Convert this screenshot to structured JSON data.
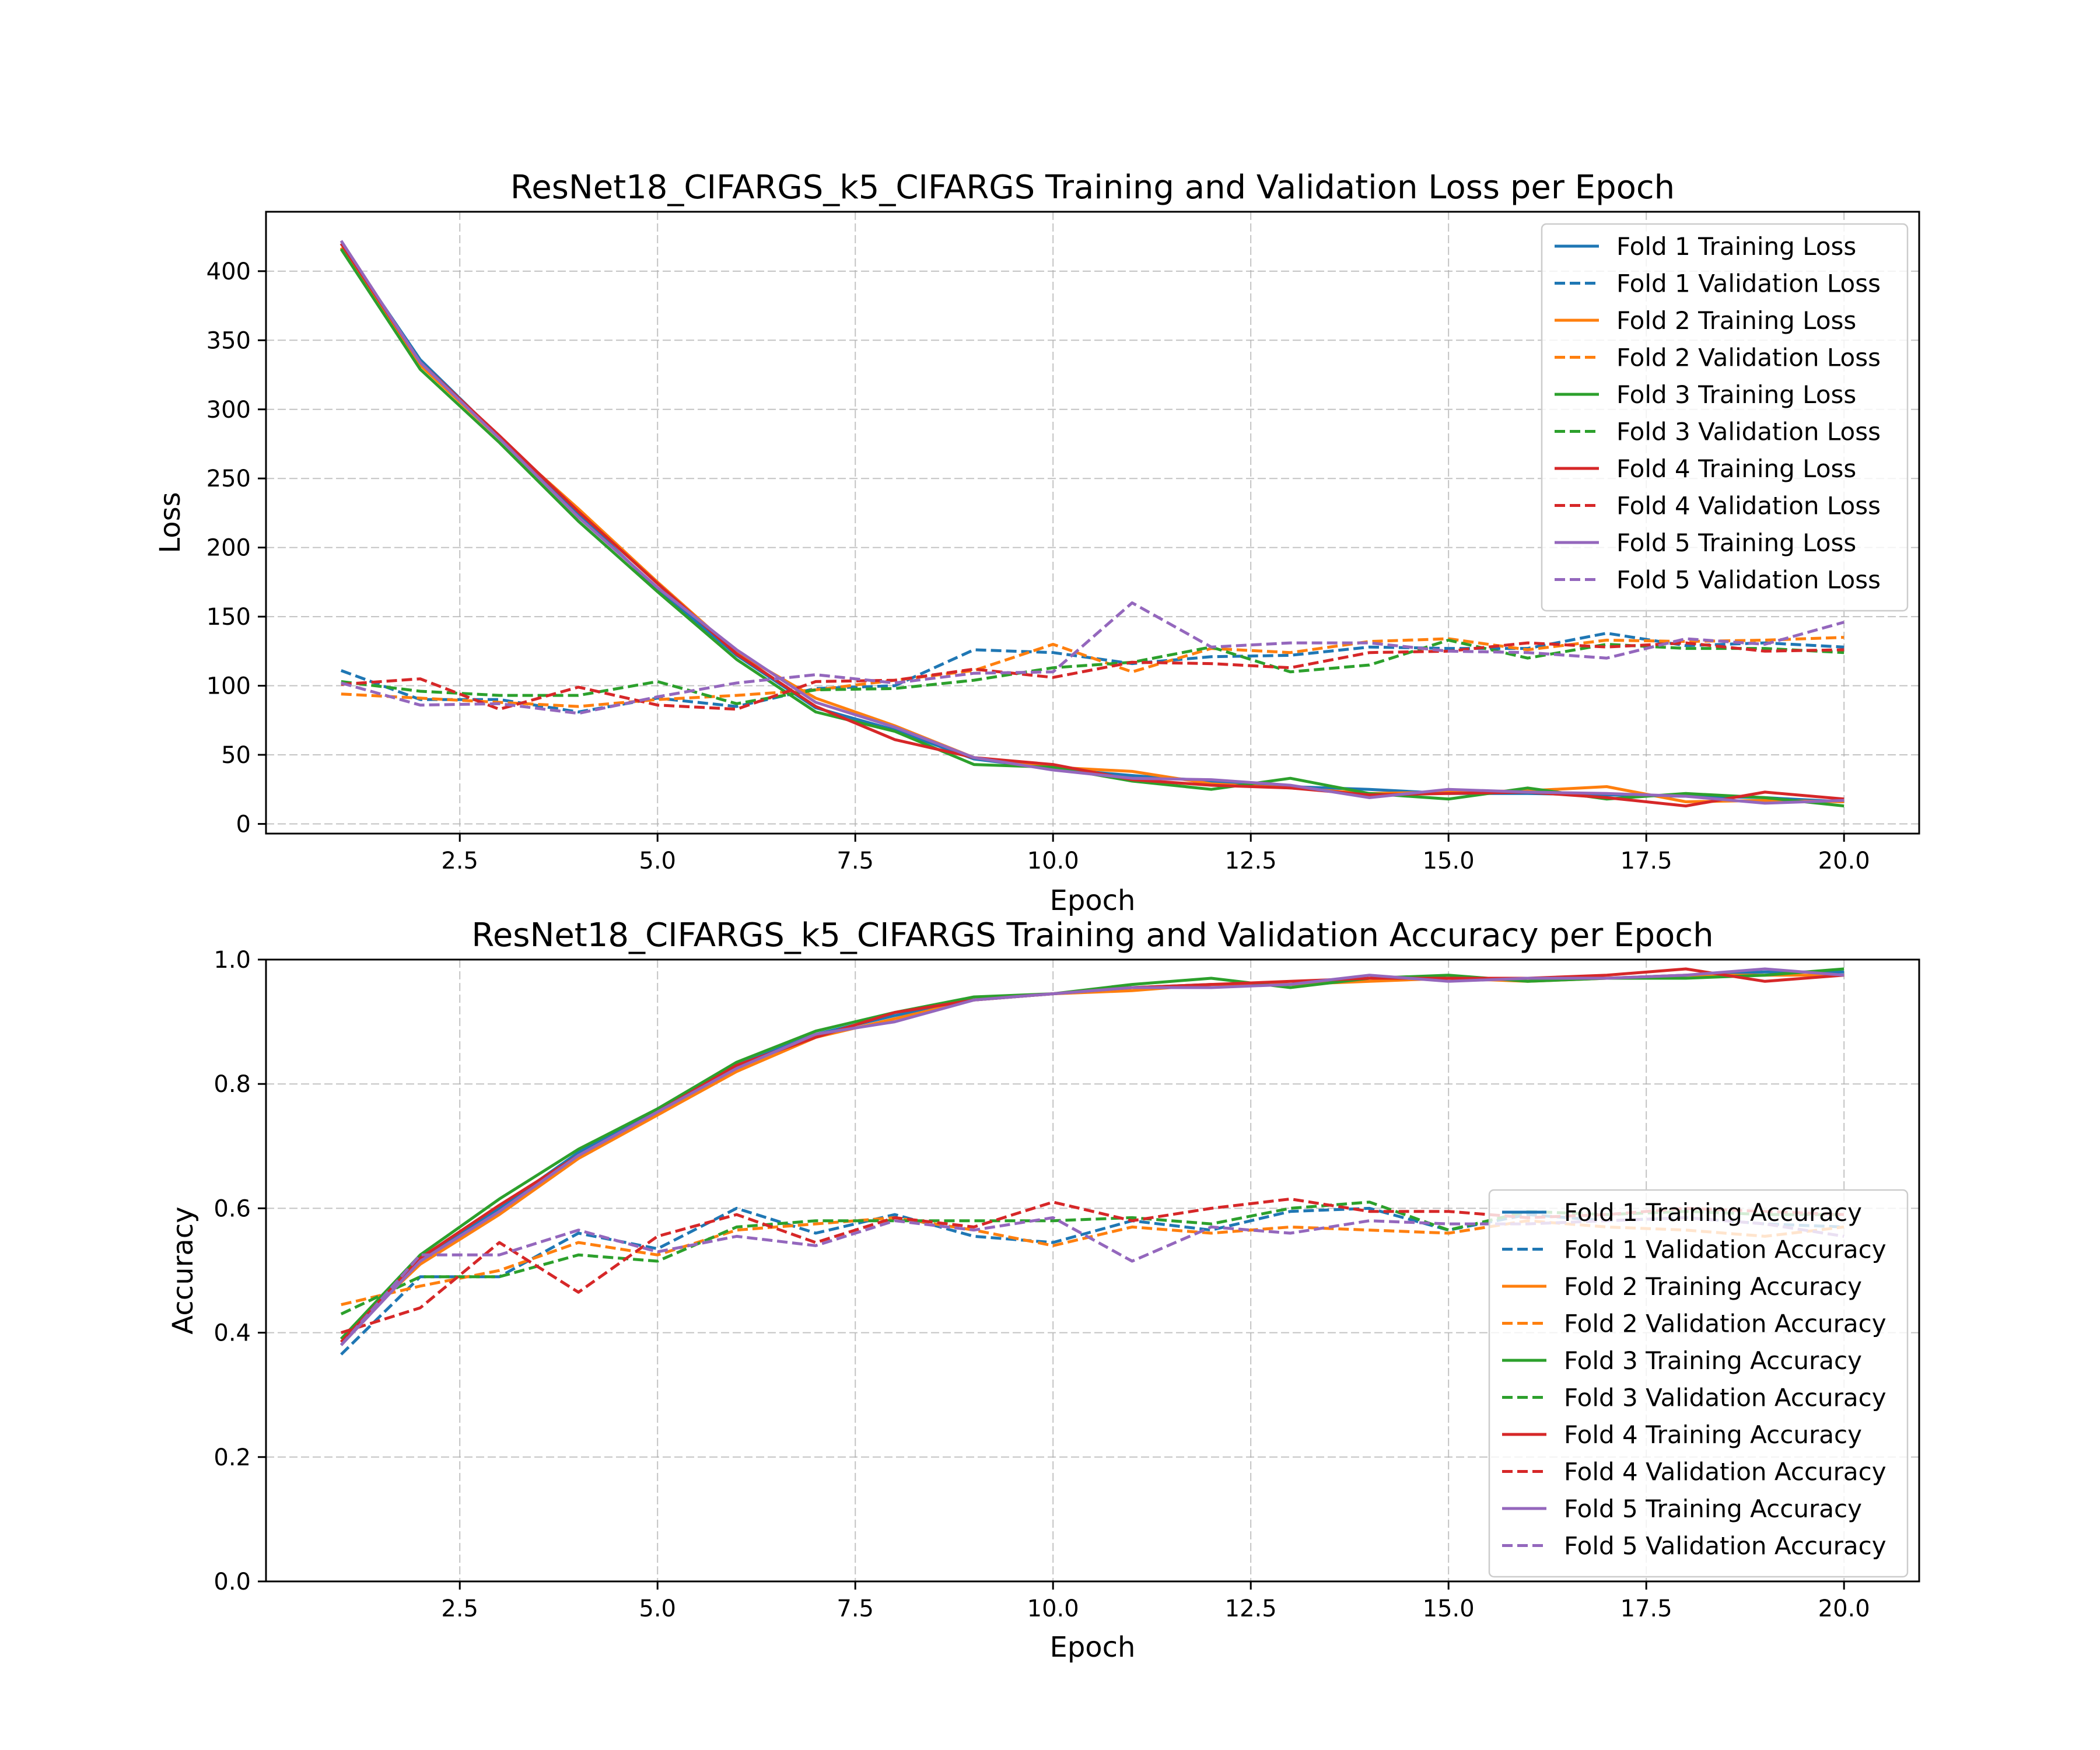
{
  "chart_data": [
    {
      "type": "line",
      "title": "ResNet18_CIFARGS_k5_CIFARGS Training and Validation Loss per Epoch",
      "xlabel": "Epoch",
      "ylabel": "Loss",
      "xlim": [
        0.05,
        20.95
      ],
      "ylim": [
        -7,
        443
      ],
      "x_ticks": [
        2.5,
        5.0,
        7.5,
        10.0,
        12.5,
        15.0,
        17.5,
        20.0
      ],
      "x_tick_labels": [
        "2.5",
        "5.0",
        "7.5",
        "10.0",
        "12.5",
        "15.0",
        "17.5",
        "20.0"
      ],
      "y_ticks": [
        0,
        50,
        100,
        150,
        200,
        250,
        300,
        350,
        400
      ],
      "y_tick_labels": [
        "0",
        "50",
        "100",
        "150",
        "200",
        "250",
        "300",
        "350",
        "400"
      ],
      "grid": true,
      "legend_position": "upper right",
      "x": [
        1,
        2,
        3,
        4,
        5,
        6,
        7,
        8,
        9,
        10,
        11,
        12,
        13,
        14,
        15,
        16,
        17,
        18,
        19,
        20
      ],
      "series": [
        {
          "name": "Fold 1 Training Loss",
          "color": "#1f77b4",
          "dash": "solid",
          "values": [
            420,
            336,
            280,
            224,
            170,
            122,
            84,
            68,
            47,
            40,
            35,
            31,
            27,
            25,
            22,
            22,
            21,
            20,
            19,
            16
          ]
        },
        {
          "name": "Fold 1 Validation Loss",
          "color": "#1f77b4",
          "dash": "dashed",
          "values": [
            111,
            90,
            90,
            81,
            91,
            85,
            98,
            100,
            126,
            124,
            116,
            121,
            122,
            128,
            127,
            127,
            138,
            129,
            131,
            128
          ]
        },
        {
          "name": "Fold 2 Training Loss",
          "color": "#ff7f0e",
          "dash": "solid",
          "values": [
            417,
            332,
            279,
            228,
            175,
            124,
            91,
            71,
            48,
            41,
            38,
            29,
            26,
            22,
            23,
            24,
            27,
            16,
            17,
            16
          ]
        },
        {
          "name": "Fold 2 Validation Loss",
          "color": "#ff7f0e",
          "dash": "dashed",
          "values": [
            94,
            91,
            88,
            85,
            90,
            93,
            97,
            104,
            111,
            130,
            110,
            127,
            124,
            132,
            134,
            126,
            133,
            132,
            133,
            135
          ]
        },
        {
          "name": "Fold 3 Training Loss",
          "color": "#2ca02c",
          "dash": "solid",
          "values": [
            416,
            329,
            276,
            219,
            168,
            119,
            81,
            67,
            43,
            41,
            31,
            25,
            33,
            22,
            18,
            26,
            18,
            22,
            19,
            13
          ]
        },
        {
          "name": "Fold 3 Validation Loss",
          "color": "#2ca02c",
          "dash": "dashed",
          "values": [
            103,
            96,
            93,
            93,
            103,
            87,
            97,
            98,
            104,
            113,
            117,
            128,
            110,
            115,
            133,
            120,
            130,
            127,
            127,
            124
          ]
        },
        {
          "name": "Fold 4 Training Loss",
          "color": "#d62728",
          "dash": "solid",
          "values": [
            420,
            334,
            281,
            226,
            174,
            123,
            85,
            61,
            48,
            43,
            32,
            28,
            26,
            21,
            22,
            23,
            19,
            13,
            23,
            18
          ]
        },
        {
          "name": "Fold 4 Validation Loss",
          "color": "#d62728",
          "dash": "dashed",
          "values": [
            101,
            105,
            83,
            99,
            86,
            83,
            103,
            104,
            112,
            106,
            117,
            116,
            113,
            124,
            125,
            131,
            128,
            131,
            125,
            126
          ]
        },
        {
          "name": "Fold 5 Training Loss",
          "color": "#9467bd",
          "dash": "solid",
          "values": [
            422,
            334,
            279,
            222,
            171,
            126,
            88,
            70,
            48,
            39,
            33,
            32,
            28,
            19,
            25,
            23,
            22,
            20,
            15,
            17
          ]
        },
        {
          "name": "Fold 5 Validation Loss",
          "color": "#9467bd",
          "dash": "dashed",
          "values": [
            102,
            86,
            87,
            80,
            92,
            102,
            108,
            102,
            109,
            110,
            160,
            128,
            131,
            131,
            125,
            124,
            120,
            134,
            130,
            146
          ]
        }
      ]
    },
    {
      "type": "line",
      "title": "ResNet18_CIFARGS_k5_CIFARGS Training and Validation Accuracy per Epoch",
      "xlabel": "Epoch",
      "ylabel": "Accuracy",
      "xlim": [
        0.05,
        20.95
      ],
      "ylim": [
        0.0,
        1.0
      ],
      "x_ticks": [
        2.5,
        5.0,
        7.5,
        10.0,
        12.5,
        15.0,
        17.5,
        20.0
      ],
      "x_tick_labels": [
        "2.5",
        "5.0",
        "7.5",
        "10.0",
        "12.5",
        "15.0",
        "17.5",
        "20.0"
      ],
      "y_ticks": [
        0.0,
        0.2,
        0.4,
        0.6,
        0.8,
        1.0
      ],
      "y_tick_labels": [
        "0.0",
        "0.2",
        "0.4",
        "0.6",
        "0.8",
        "1.0"
      ],
      "grid": true,
      "legend_position": "lower right",
      "x": [
        1,
        2,
        3,
        4,
        5,
        6,
        7,
        8,
        9,
        10,
        11,
        12,
        13,
        14,
        15,
        16,
        17,
        18,
        19,
        20
      ],
      "series": [
        {
          "name": "Fold 1 Training Accuracy",
          "color": "#1f77b4",
          "dash": "solid",
          "values": [
            0.38,
            0.52,
            0.6,
            0.69,
            0.76,
            0.83,
            0.88,
            0.91,
            0.935,
            0.945,
            0.955,
            0.96,
            0.96,
            0.97,
            0.97,
            0.97,
            0.97,
            0.975,
            0.98,
            0.98
          ]
        },
        {
          "name": "Fold 1 Validation Accuracy",
          "color": "#1f77b4",
          "dash": "dashed",
          "values": [
            0.365,
            0.49,
            0.49,
            0.56,
            0.535,
            0.6,
            0.56,
            0.59,
            0.555,
            0.545,
            0.58,
            0.565,
            0.595,
            0.6,
            0.565,
            0.59,
            0.58,
            0.585,
            0.575,
            0.57
          ]
        },
        {
          "name": "Fold 2 Training Accuracy",
          "color": "#ff7f0e",
          "dash": "solid",
          "values": [
            0.39,
            0.51,
            0.59,
            0.68,
            0.75,
            0.82,
            0.875,
            0.905,
            0.935,
            0.945,
            0.95,
            0.96,
            0.96,
            0.965,
            0.97,
            0.965,
            0.97,
            0.975,
            0.975,
            0.975
          ]
        },
        {
          "name": "Fold 2 Validation Accuracy",
          "color": "#ff7f0e",
          "dash": "dashed",
          "values": [
            0.445,
            0.475,
            0.5,
            0.545,
            0.525,
            0.565,
            0.575,
            0.585,
            0.565,
            0.54,
            0.57,
            0.56,
            0.57,
            0.565,
            0.56,
            0.58,
            0.57,
            0.565,
            0.555,
            0.57
          ]
        },
        {
          "name": "Fold 3 Training Accuracy",
          "color": "#2ca02c",
          "dash": "solid",
          "values": [
            0.39,
            0.525,
            0.615,
            0.695,
            0.76,
            0.835,
            0.885,
            0.915,
            0.94,
            0.945,
            0.96,
            0.97,
            0.955,
            0.97,
            0.975,
            0.965,
            0.97,
            0.97,
            0.975,
            0.985
          ]
        },
        {
          "name": "Fold 3 Validation Accuracy",
          "color": "#2ca02c",
          "dash": "dashed",
          "values": [
            0.43,
            0.49,
            0.49,
            0.525,
            0.515,
            0.57,
            0.58,
            0.58,
            0.58,
            0.58,
            0.585,
            0.575,
            0.6,
            0.61,
            0.565,
            0.595,
            0.59,
            0.595,
            0.59,
            0.59
          ]
        },
        {
          "name": "Fold 4 Training Accuracy",
          "color": "#d62728",
          "dash": "solid",
          "values": [
            0.385,
            0.52,
            0.605,
            0.685,
            0.755,
            0.83,
            0.875,
            0.915,
            0.935,
            0.945,
            0.955,
            0.96,
            0.965,
            0.97,
            0.97,
            0.97,
            0.975,
            0.985,
            0.965,
            0.975
          ]
        },
        {
          "name": "Fold 4 Validation Accuracy",
          "color": "#d62728",
          "dash": "dashed",
          "values": [
            0.4,
            0.44,
            0.545,
            0.465,
            0.555,
            0.59,
            0.545,
            0.585,
            0.57,
            0.61,
            0.58,
            0.6,
            0.615,
            0.595,
            0.595,
            0.585,
            0.59,
            0.6,
            0.595,
            0.59
          ]
        },
        {
          "name": "Fold 5 Training Accuracy",
          "color": "#9467bd",
          "dash": "solid",
          "values": [
            0.38,
            0.515,
            0.595,
            0.685,
            0.755,
            0.825,
            0.88,
            0.9,
            0.935,
            0.945,
            0.955,
            0.955,
            0.96,
            0.975,
            0.965,
            0.97,
            0.97,
            0.975,
            0.985,
            0.975
          ]
        },
        {
          "name": "Fold 5 Validation Accuracy",
          "color": "#9467bd",
          "dash": "dashed",
          "values": [
            0.38,
            0.525,
            0.525,
            0.565,
            0.53,
            0.555,
            0.54,
            0.58,
            0.565,
            0.585,
            0.515,
            0.57,
            0.56,
            0.58,
            0.575,
            0.575,
            0.58,
            0.585,
            0.575,
            0.555
          ]
        }
      ]
    }
  ]
}
